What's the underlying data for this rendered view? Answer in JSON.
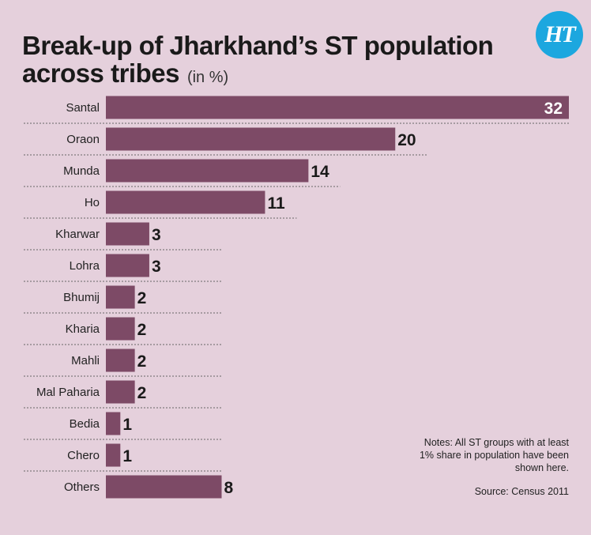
{
  "header": {
    "title": "Break-up of Jharkhand’s ST population across tribes",
    "unit": "(in %)",
    "logo_text": "HT"
  },
  "notes": "Notes: All ST groups with at least 1% share in population have been shown here.",
  "source": "Source: Census 2011",
  "colors": {
    "bar": "#7d4a66",
    "background": "#e5d0dc",
    "logo": "#1ca7df"
  },
  "chart_data": {
    "type": "bar",
    "orientation": "horizontal",
    "categories": [
      "Santal",
      "Oraon",
      "Munda",
      "Ho",
      "Kharwar",
      "Lohra",
      "Bhumij",
      "Kharia",
      "Mahli",
      "Mal Paharia",
      "Bedia",
      "Chero",
      "Others"
    ],
    "values": [
      32,
      20,
      14,
      11,
      3,
      3,
      2,
      2,
      2,
      2,
      1,
      1,
      8
    ],
    "title": "Break-up of Jharkhand’s ST population across tribes",
    "xlabel": "",
    "ylabel": "",
    "unit": "(in %)",
    "xlim": [
      0,
      32
    ],
    "grid": false,
    "legend": "none"
  }
}
